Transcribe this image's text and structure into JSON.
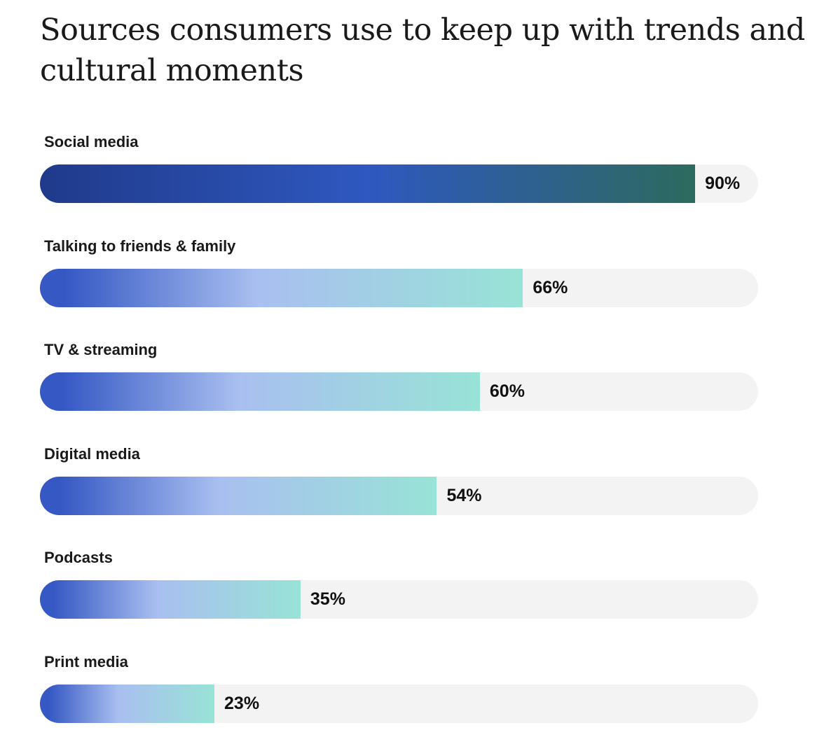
{
  "chart_data": {
    "type": "bar",
    "orientation": "horizontal",
    "title": "Sources consumers use to keep up with trends and cultural moments",
    "categories": [
      "Social media",
      "Talking to friends & family",
      "TV & streaming",
      "Digital media",
      "Podcasts",
      "Print media"
    ],
    "values": [
      90,
      66,
      60,
      54,
      35,
      23
    ],
    "value_labels": [
      "90%",
      "66%",
      "60%",
      "54%",
      "35%",
      "23%"
    ],
    "xlim": [
      0,
      100
    ],
    "unit": "%",
    "colors": {
      "highlight_gradient": [
        "#1f3a8a",
        "#2f58c0",
        "#2d6a5e"
      ],
      "default_gradient": [
        "#3558c4",
        "#a9bff0",
        "#98e3d6"
      ],
      "track": "#f3f3f3"
    }
  }
}
